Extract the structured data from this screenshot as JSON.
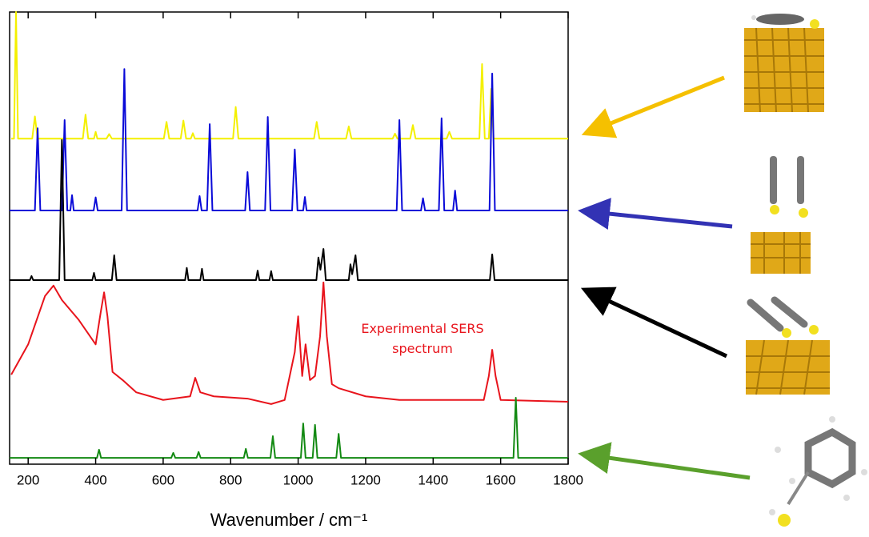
{
  "chart_data": {
    "type": "line",
    "x_label": "Wavenumber / cm⁻¹",
    "annotation": "Experimental SERS spectrum",
    "annotation_color": "#e8141c",
    "xlim": [
      145,
      1800
    ],
    "ylim": [
      0,
      100
    ],
    "xticks": [
      200,
      400,
      600,
      800,
      1000,
      1200,
      1400,
      1600,
      1800
    ],
    "series": [
      {
        "color": "#f4f000",
        "x": [
          150,
          158,
          164,
          170,
          212,
          220,
          228,
          362,
          370,
          378,
          395,
          400,
          405,
          432,
          440,
          448,
          602,
          610,
          618,
          652,
          660,
          668,
          682,
          688,
          694,
          807,
          815,
          823,
          1047,
          1055,
          1063,
          1142,
          1150,
          1158,
          1280,
          1287,
          1294,
          1332,
          1340,
          1348,
          1440,
          1448,
          1456,
          1537,
          1545,
          1553,
          1565,
          1572,
          1579,
          1800
        ],
        "values": [
          72,
          72,
          100,
          72,
          72,
          76.9,
          72,
          72,
          77.3,
          72,
          72,
          73.5,
          72,
          72,
          73,
          72,
          72,
          75.7,
          72,
          72,
          76,
          72,
          72,
          73.2,
          72,
          72,
          79,
          72,
          72,
          75.7,
          72,
          72,
          74.7,
          72,
          72,
          73.1,
          72,
          72,
          75,
          72,
          72,
          73.5,
          72,
          72,
          88.5,
          72,
          72,
          83,
          72,
          72
        ]
      },
      {
        "color": "#0a0ad8",
        "x": [
          145,
          220,
          228,
          236,
          300,
          308,
          316,
          325,
          330,
          335,
          394,
          400,
          406,
          477,
          485,
          493,
          702,
          708,
          714,
          730,
          738,
          746,
          843,
          850,
          857,
          902,
          910,
          918,
          982,
          990,
          998,
          1015,
          1020,
          1025,
          1292,
          1300,
          1308,
          1364,
          1370,
          1376,
          1417,
          1425,
          1433,
          1459,
          1465,
          1471,
          1567,
          1575,
          1583,
          1800
        ],
        "values": [
          56.1,
          56.1,
          74.3,
          56.1,
          56.1,
          76.1,
          56.1,
          56.1,
          59.5,
          56.1,
          56.1,
          59,
          56.1,
          56.1,
          87.4,
          56.1,
          56.1,
          59.3,
          56.1,
          56.1,
          75.2,
          56.1,
          56.1,
          64.6,
          56.1,
          56.1,
          76.8,
          56.1,
          56.1,
          69.6,
          56.1,
          56.1,
          59.1,
          56.1,
          56.1,
          76.1,
          56.1,
          56.1,
          58.8,
          56.1,
          56.1,
          76.5,
          56.1,
          56.1,
          60.5,
          56.1,
          56.1,
          86.4,
          56.1,
          56.1
        ]
      },
      {
        "color": "#000000",
        "x": [
          145,
          205,
          210,
          215,
          292,
          300,
          308,
          390,
          395,
          400,
          448,
          455,
          462,
          665,
          670,
          675,
          710,
          715,
          720,
          875,
          880,
          885,
          915,
          920,
          925,
          1054,
          1060,
          1066,
          1075,
          1082,
          1150,
          1155,
          1160,
          1170,
          1177,
          1568,
          1575,
          1582,
          1800
        ],
        "values": [
          40.7,
          40.7,
          41.6,
          40.7,
          40.7,
          71.7,
          40.7,
          40.7,
          42.3,
          40.7,
          40.7,
          46.2,
          40.7,
          40.7,
          43.4,
          40.7,
          40.7,
          43.2,
          40.7,
          40.7,
          42.8,
          40.7,
          40.7,
          42.7,
          40.7,
          40.7,
          45.7,
          43,
          47.6,
          40.7,
          40.7,
          44.2,
          42,
          46.2,
          40.7,
          40.7,
          46.4,
          40.7,
          40.7
        ]
      },
      {
        "color": "#e8141c",
        "x": [
          150,
          200,
          250,
          275,
          300,
          350,
          400,
          415,
          425,
          435,
          450,
          480,
          520,
          600,
          680,
          695,
          710,
          750,
          850,
          920,
          960,
          990,
          1000,
          1012,
          1022,
          1035,
          1050,
          1065,
          1075,
          1085,
          1100,
          1120,
          1200,
          1300,
          1450,
          1550,
          1565,
          1575,
          1585,
          1600,
          1800
        ],
        "values": [
          19.8,
          26.5,
          37.2,
          39.5,
          36.3,
          31.9,
          26.5,
          33.6,
          38,
          32.7,
          20.4,
          18.6,
          15.9,
          14.2,
          15,
          19.1,
          15.9,
          15,
          14.5,
          13.3,
          14.2,
          24.8,
          32.7,
          19.5,
          26.5,
          18.6,
          19.5,
          28.3,
          40.2,
          28.3,
          17.7,
          16.8,
          15,
          14.2,
          14.2,
          14.2,
          19.5,
          25.3,
          19.5,
          14.2,
          13.8
        ]
      },
      {
        "color": "#138a13",
        "x": [
          145,
          404,
          410,
          416,
          624,
          630,
          636,
          699,
          705,
          711,
          839,
          845,
          851,
          918,
          925,
          932,
          1008,
          1015,
          1022,
          1043,
          1050,
          1057,
          1113,
          1120,
          1127,
          1638,
          1645,
          1652,
          1800
        ],
        "values": [
          1.4,
          1.4,
          3.2,
          1.4,
          1.4,
          2.5,
          1.4,
          1.4,
          2.7,
          1.4,
          1.4,
          3.4,
          1.4,
          1.4,
          6.2,
          1.4,
          1.4,
          9,
          1.4,
          1.4,
          8.7,
          1.4,
          1.4,
          6.7,
          1.4,
          1.4,
          14.7,
          1.4,
          1.4
        ]
      }
    ]
  }
}
